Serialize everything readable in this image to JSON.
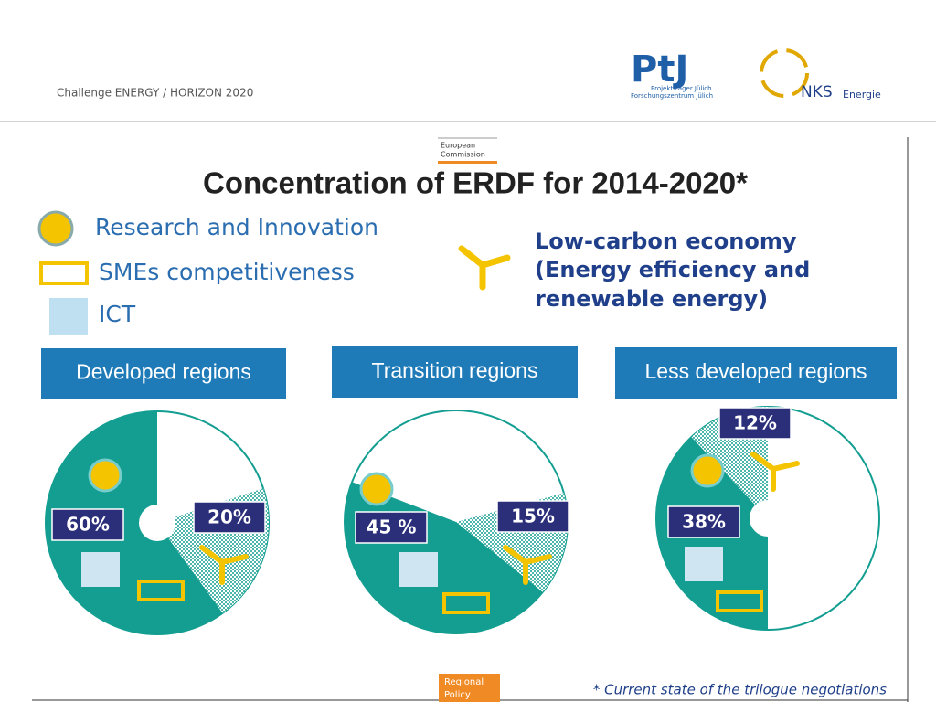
{
  "header": {
    "title": "Challenge ENERGY / HORIZON 2020",
    "ptj_logo": "PtJ",
    "ptj_line1": "Projektträger Jülich",
    "ptj_line2": "Forschungszentrum Jülich",
    "nks": "NKS",
    "nks_sub": "Energie"
  },
  "ec_label": [
    "European",
    "Commission"
  ],
  "slide_title": "Concentration of ERDF for 2014-2020*",
  "legend": {
    "research": "Research and Innovation",
    "smes": "SMEs competitiveness",
    "ict": "ICT",
    "low_carbon": [
      "Low-carbon economy",
      "(Energy efficiency and",
      "renewable energy)"
    ]
  },
  "chart_data": [
    {
      "type": "pie",
      "title": "Developed regions",
      "values": [
        60,
        20
      ],
      "value_labels": [
        "60%",
        "20%"
      ],
      "colors": [
        "#139e91",
        "#139e91"
      ]
    },
    {
      "type": "pie",
      "title": "Transition regions",
      "values": [
        45,
        15
      ],
      "value_labels": [
        "45 %",
        "15%"
      ],
      "colors": [
        "#139e91",
        "#139e91"
      ]
    },
    {
      "type": "pie",
      "title": "Less developed regions",
      "values": [
        38,
        12
      ],
      "value_labels": [
        "38%",
        "12%"
      ],
      "colors": [
        "#139e91",
        "#139e91"
      ]
    }
  ],
  "footnote": "* Current state of the trilogue negotiations",
  "regional_policy": [
    "Regional",
    "Policy"
  ]
}
